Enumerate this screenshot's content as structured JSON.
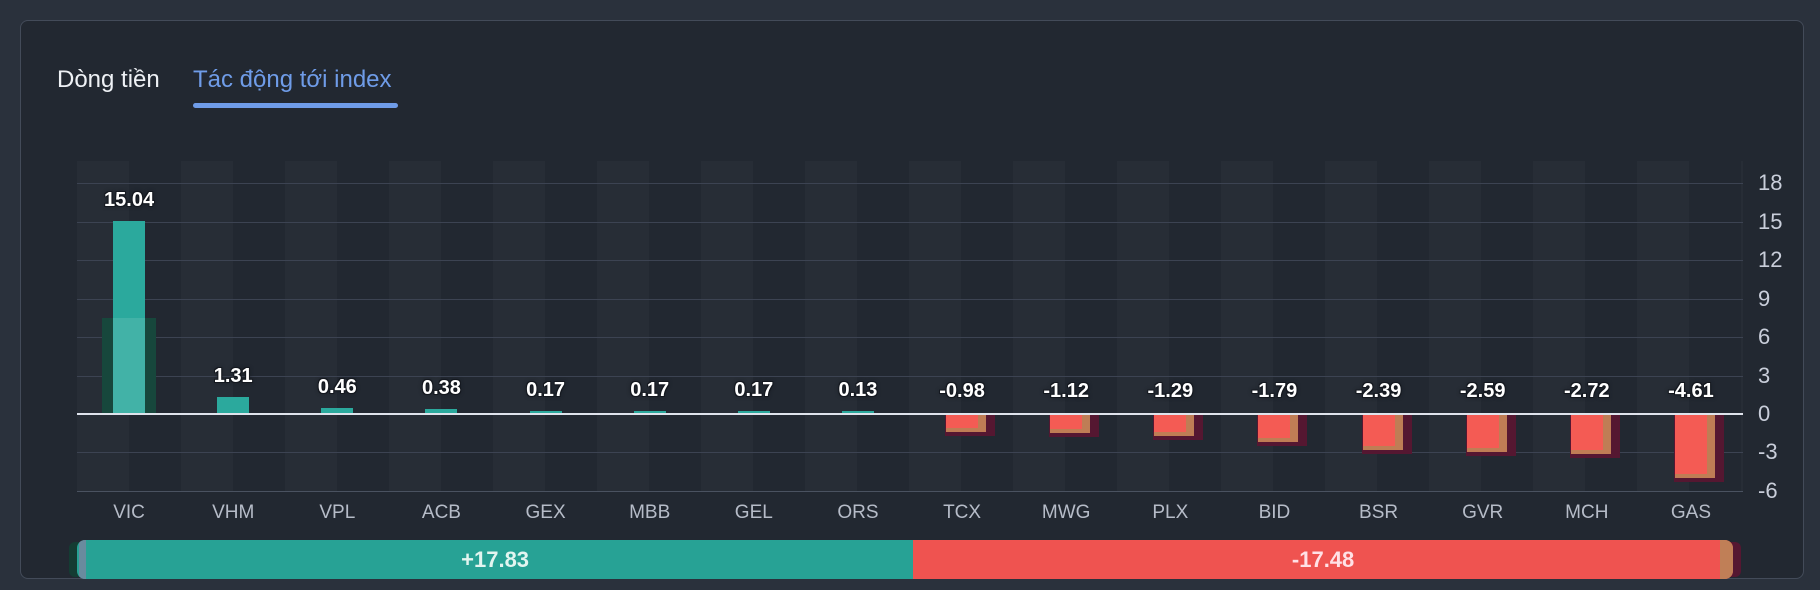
{
  "tabs": {
    "money_flow": "Dòng tiền",
    "index_impact": "Tác động tới index",
    "active": "Tác động tới index"
  },
  "chart_data": {
    "type": "bar",
    "title": "Tác động tới index",
    "categories": [
      "VIC",
      "VHM",
      "VPL",
      "ACB",
      "GEX",
      "MBB",
      "GEL",
      "ORS",
      "TCX",
      "MWG",
      "PLX",
      "BID",
      "BSR",
      "GVR",
      "MCH",
      "GAS"
    ],
    "values": [
      15.04,
      1.31,
      0.46,
      0.38,
      0.17,
      0.17,
      0.17,
      0.13,
      -0.98,
      -1.12,
      -1.29,
      -1.79,
      -2.39,
      -2.59,
      -2.72,
      -4.61
    ],
    "value_labels": [
      "15.04",
      "1.31",
      "0.46",
      "0.38",
      "0.17",
      "0.17",
      "0.17",
      "0.13",
      "-0.98",
      "-1.12",
      "-1.29",
      "-1.79",
      "-2.39",
      "-2.59",
      "-2.72",
      "-4.61"
    ],
    "yticks": [
      "18",
      "15",
      "12",
      "9",
      "6",
      "3",
      "0",
      "-3",
      "-6"
    ],
    "ytick_values": [
      18,
      15,
      12,
      9,
      6,
      3,
      0,
      -3,
      -6
    ],
    "ylim": [
      -6,
      18
    ],
    "xlabel": "",
    "ylabel": "",
    "grid": true,
    "legend": "none",
    "y_axis_position": "right",
    "colors": {
      "positive": "#2BA99D",
      "negative": "#F45B54",
      "positive_ghost": "#17473C",
      "negative_ghost_tan": "#BF7D55",
      "negative_ghost_maroon": "#551731",
      "gridline": "#3C4352",
      "zero_line": "#DFE3EC"
    }
  },
  "summary": {
    "positive_label": "+17.83",
    "negative_label": "-17.48",
    "positive_value": 17.83,
    "negative_value": 17.48,
    "positive_color": "#27A295",
    "negative_color": "#EF5350"
  },
  "theme": {
    "page_bg": "#2A313C",
    "card_bg": "#222831",
    "card_border": "#434B59",
    "tab_active_color": "#6F9CE8",
    "tab_inactive_color": "#EEF1F5",
    "axis_text": "#C9CEDA"
  }
}
